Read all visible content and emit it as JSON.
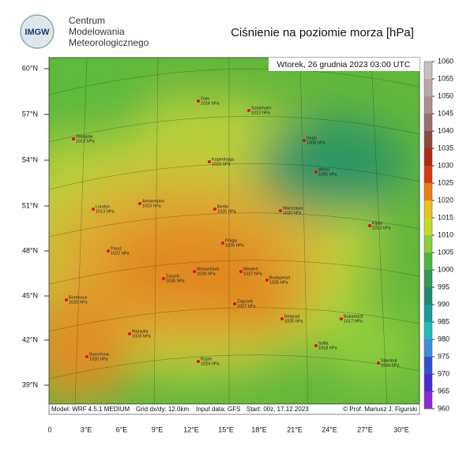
{
  "header": {
    "logo": "IMGW",
    "org_lines": [
      "Centrum",
      "Modelowania",
      "Meteorologicznego"
    ],
    "title": "Ciśnienie na poziomie morza [hPa]",
    "timestamp": "Wtorek, 26 grudnia 2023 03:00 UTC"
  },
  "map": {
    "lat_labels": [
      "60°N",
      "57°N",
      "54°N",
      "51°N",
      "48°N",
      "45°N",
      "42°N",
      "39°N"
    ],
    "lon_labels": [
      "0",
      "3°E",
      "6°E",
      "9°E",
      "12°E",
      "15°E",
      "18°E",
      "21°E",
      "24°E",
      "27°E",
      "30°E"
    ],
    "cities": [
      {
        "name": "Oslo",
        "pressure": "1016 hPa"
      },
      {
        "name": "Sztokholm",
        "pressure": "1013 hPa"
      },
      {
        "name": "Glasgow",
        "pressure": "1013 hPa"
      },
      {
        "name": "Ryga",
        "pressure": "1008 hPa"
      },
      {
        "name": "Kopenhaga",
        "pressure": "1023 hPa"
      },
      {
        "name": "Wilno",
        "pressure": "1005 hPa"
      },
      {
        "name": "Londyn",
        "pressure": "1013 hPa"
      },
      {
        "name": "Amsterdam",
        "pressure": "1023 hPa"
      },
      {
        "name": "Berlin",
        "pressure": "1025 hPa"
      },
      {
        "name": "Warszawa",
        "pressure": "1020 hPa"
      },
      {
        "name": "Kijów",
        "pressure": "1013 hPa"
      },
      {
        "name": "Paryż",
        "pressure": "1022 hPa"
      },
      {
        "name": "Praga",
        "pressure": "1025 hPa"
      },
      {
        "name": "Monachium",
        "pressure": "1028 hPa"
      },
      {
        "name": "Wiedeń",
        "pressure": "1027 hPa"
      },
      {
        "name": "Zurych",
        "pressure": "1026 hPa"
      },
      {
        "name": "Budapeszt",
        "pressure": "1025 hPa"
      },
      {
        "name": "Bordeaux",
        "pressure": "1025 hPa"
      },
      {
        "name": "Zagrzeb",
        "pressure": "1027 hPa"
      },
      {
        "name": "Belgrad",
        "pressure": "1025 hPa"
      },
      {
        "name": "Bukareszt",
        "pressure": "1017 hPa"
      },
      {
        "name": "Marsylia",
        "pressure": "1023 hPa"
      },
      {
        "name": "Sofia",
        "pressure": "1018 hPa"
      },
      {
        "name": "Barcelona",
        "pressure": "1020 hPa"
      },
      {
        "name": "Rzym",
        "pressure": "1024 hPa"
      },
      {
        "name": "Stambuł",
        "pressure": "1016 hPa"
      }
    ]
  },
  "footer": {
    "model": "Model: WRF 4.5.1 MEDIUM",
    "grid": "Grid dx/dy: 12.0km",
    "input": "Input data: GFS",
    "start": "Start: 00z, 17.12.2023",
    "credit": "© Prof. Mariusz J. Figurski"
  },
  "colorbar": {
    "ticks": [
      1060,
      1055,
      1050,
      1045,
      1040,
      1035,
      1030,
      1025,
      1020,
      1015,
      1010,
      1005,
      1000,
      995,
      990,
      985,
      980,
      975,
      970,
      965,
      960
    ],
    "colors": [
      "#c8c0c0",
      "#b8a8a8",
      "#a88e8e",
      "#9a6f6f",
      "#8c4a3c",
      "#b02a18",
      "#d83a10",
      "#e77f1a",
      "#e8c21e",
      "#c8d82a",
      "#8ccd3a",
      "#4eb43e",
      "#2e9a55",
      "#1f8a72",
      "#1a9c9a",
      "#22b8c0",
      "#3a8fd8",
      "#3050d0",
      "#4a2ad0",
      "#8a2ad8"
    ]
  }
}
